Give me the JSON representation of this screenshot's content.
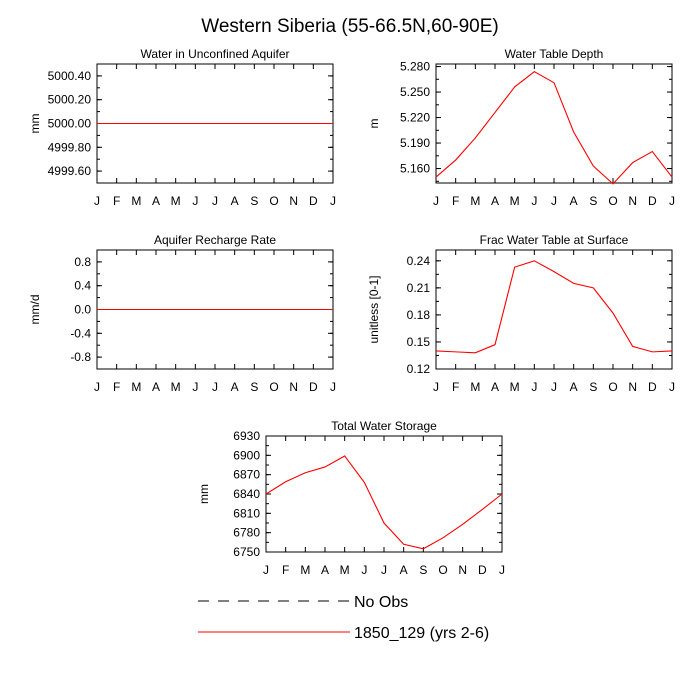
{
  "figure": {
    "title": "Western Siberia (55-66.5N,60-90E)"
  },
  "months": [
    "J",
    "F",
    "M",
    "A",
    "M",
    "J",
    "J",
    "A",
    "S",
    "O",
    "N",
    "D",
    "J"
  ],
  "colors": {
    "model": "#ff0000",
    "obs": "#000000",
    "axis": "#000000"
  },
  "legend": {
    "obs_label": "No Obs",
    "model_label": "1850_129 (yrs 2-6)"
  },
  "chart_data": [
    {
      "id": "water-unconfined-aquifer",
      "type": "line",
      "title": "Water in Unconfined Aquifer",
      "ylabel": "mm",
      "ylim": [
        4999.5,
        5000.5
      ],
      "yticks": [
        4999.6,
        4999.8,
        5000.0,
        5000.2,
        5000.4
      ],
      "ytick_labels": [
        "4999.60",
        "4999.80",
        "5000.00",
        "5000.20",
        "5000.40"
      ],
      "series": [
        {
          "name": "1850_129 (yrs 2-6)",
          "values": [
            5000,
            5000,
            5000,
            5000,
            5000,
            5000,
            5000,
            5000,
            5000,
            5000,
            5000,
            5000,
            5000
          ]
        }
      ]
    },
    {
      "id": "water-table-depth",
      "type": "line",
      "title": "Water Table Depth",
      "ylabel": "m",
      "ylim": [
        5.143,
        5.283
      ],
      "yticks": [
        5.16,
        5.19,
        5.22,
        5.25,
        5.28
      ],
      "ytick_labels": [
        "5.160",
        "5.190",
        "5.220",
        "5.250",
        "5.280"
      ],
      "series": [
        {
          "name": "1850_129 (yrs 2-6)",
          "values": [
            5.15,
            5.17,
            5.196,
            5.226,
            5.256,
            5.274,
            5.261,
            5.203,
            5.163,
            5.142,
            5.167,
            5.18,
            5.15
          ]
        }
      ]
    },
    {
      "id": "aquifer-recharge-rate",
      "type": "line",
      "title": "Aquifer Recharge Rate",
      "ylabel": "mm/d",
      "ylim": [
        -1.0,
        1.0
      ],
      "yticks": [
        -0.8,
        -0.4,
        0.0,
        0.4,
        0.8
      ],
      "ytick_labels": [
        "-0.8",
        "-0.4",
        "0.0",
        "0.4",
        "0.8"
      ],
      "series": [
        {
          "name": "1850_129 (yrs 2-6)",
          "values": [
            0,
            0,
            0,
            0,
            0,
            0,
            0,
            0,
            0,
            0,
            0,
            0,
            0
          ]
        }
      ]
    },
    {
      "id": "frac-water-table-surface",
      "type": "line",
      "title": "Frac Water Table at Surface",
      "ylabel": "unitless [0-1]",
      "ylim": [
        0.12,
        0.252
      ],
      "yticks": [
        0.12,
        0.15,
        0.18,
        0.21,
        0.24
      ],
      "ytick_labels": [
        "0.12",
        "0.15",
        "0.18",
        "0.21",
        "0.24"
      ],
      "series": [
        {
          "name": "1850_129 (yrs 2-6)",
          "values": [
            0.14,
            0.139,
            0.138,
            0.147,
            0.233,
            0.24,
            0.228,
            0.215,
            0.21,
            0.182,
            0.145,
            0.139,
            0.14
          ]
        }
      ]
    },
    {
      "id": "total-water-storage",
      "type": "line",
      "title": "Total Water Storage",
      "ylabel": "mm",
      "ylim": [
        6750,
        6930
      ],
      "yticks": [
        6750,
        6780,
        6810,
        6840,
        6870,
        6900,
        6930
      ],
      "ytick_labels": [
        "6750",
        "6780",
        "6810",
        "6840",
        "6870",
        "6900",
        "6930"
      ],
      "series": [
        {
          "name": "1850_129 (yrs 2-6)",
          "values": [
            6840,
            6859,
            6873,
            6882,
            6899,
            6858,
            6795,
            6762,
            6755,
            6772,
            6793,
            6816,
            6840
          ]
        }
      ]
    }
  ]
}
